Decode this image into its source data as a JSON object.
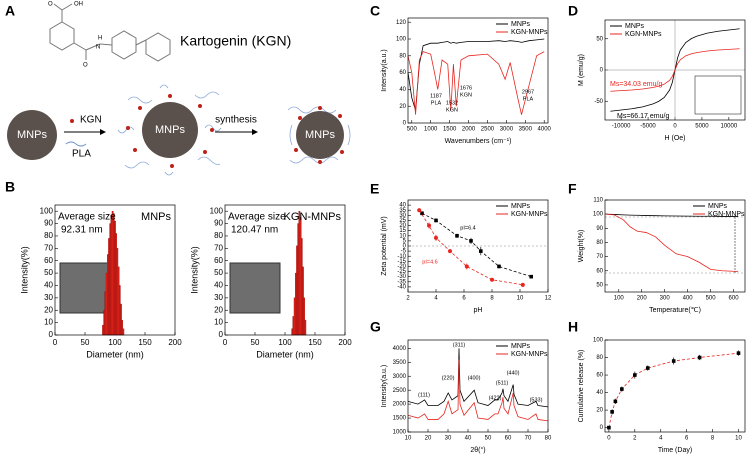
{
  "diagram": {
    "label": "A",
    "compound": "Kartogenin (KGN)",
    "atoms": [
      "OH",
      "O",
      "H",
      "N",
      "O"
    ],
    "nodes": [
      "MNPs",
      "MNPs",
      "MNPs"
    ],
    "reagents": [
      "KGN",
      "PLA"
    ],
    "step": "synthesis"
  },
  "chart_data": [
    {
      "type": "histogram",
      "label": "B",
      "title": "MNPs",
      "note": "Average size",
      "average": "92.31 nm",
      "xlabel": "Diameter (nm)",
      "ylabel": "Intensity(%)",
      "color": "#e8251f",
      "bins": [
        79,
        81,
        83,
        85,
        87,
        89,
        91,
        93,
        95,
        97,
        99,
        101,
        103,
        105,
        107,
        109,
        111,
        113,
        115
      ],
      "values": [
        8,
        20,
        35,
        50,
        65,
        78,
        90,
        97,
        100,
        98,
        92,
        82,
        70,
        55,
        40,
        25,
        12,
        5
      ],
      "xlim": [
        0,
        200
      ],
      "ylim": [
        0,
        105
      ],
      "xticks": [
        0,
        50,
        100,
        150,
        200
      ],
      "yticks": [
        0,
        10,
        20,
        30,
        40,
        50,
        60,
        70,
        80,
        90,
        100
      ]
    },
    {
      "type": "histogram",
      "title": "KGN-MNPs",
      "note": "Average size",
      "average": "120.47 nm",
      "xlabel": "Diameter (nm)",
      "ylabel": "Intensity(%)",
      "color": "#e8251f",
      "bins": [
        111,
        113,
        115,
        117,
        119,
        121,
        123,
        125,
        127,
        129,
        131,
        133,
        135
      ],
      "values": [
        5,
        15,
        30,
        50,
        72,
        90,
        100,
        95,
        78,
        55,
        30,
        12
      ],
      "xlim": [
        0,
        200
      ],
      "ylim": [
        0,
        105
      ],
      "xticks": [
        0,
        50,
        100,
        150,
        200
      ],
      "yticks": [
        0,
        10,
        20,
        30,
        40,
        50,
        60,
        70,
        80,
        90,
        100
      ]
    },
    {
      "type": "line",
      "label": "C",
      "xlabel": "Wavenumbers (cm⁻¹)",
      "ylabel": "Intensity(a.u.)",
      "legend": "upper right",
      "x": [
        400,
        500,
        600,
        700,
        800,
        1000,
        1100,
        1187,
        1300,
        1450,
        1532,
        1600,
        1676,
        1800,
        2000,
        2500,
        2800,
        2967,
        3100,
        3300,
        3400,
        3600,
        3800,
        4000
      ],
      "series": [
        {
          "name": "MNPs",
          "color": "#000000",
          "values": [
            60,
            30,
            15,
            70,
            92,
            95,
            95,
            95,
            96,
            97,
            95,
            96,
            95,
            96,
            97,
            97,
            98,
            97,
            98,
            97,
            96,
            98,
            99,
            100
          ]
        },
        {
          "name": "KGN-MNPs",
          "color": "#e8251f",
          "values": [
            80,
            60,
            10,
            75,
            85,
            82,
            60,
            40,
            75,
            70,
            15,
            70,
            20,
            75,
            80,
            82,
            70,
            52,
            72,
            30,
            10,
            45,
            80,
            85
          ]
        }
      ],
      "annotations": [
        {
          "text": "1187"
        },
        {
          "text": "PLA"
        },
        {
          "text": "1532"
        },
        {
          "text": "KGN"
        },
        {
          "text": "1676"
        },
        {
          "text": "KGN"
        },
        {
          "text": "2967"
        },
        {
          "text": "PLA"
        }
      ],
      "xlim": [
        400,
        4100
      ],
      "ylim": [
        0,
        125
      ],
      "xticks": [
        500,
        1000,
        1500,
        2000,
        2500,
        3000,
        3500,
        4000
      ],
      "yticks": [
        0,
        20,
        40,
        60,
        80,
        100,
        120
      ]
    },
    {
      "type": "line",
      "label": "D",
      "xlabel": "H (Oe)",
      "ylabel": "M (emu/g)",
      "legend": "upper left",
      "x": [
        -12000,
        -10000,
        -8000,
        -6000,
        -4000,
        -3000,
        -2000,
        -1000,
        -500,
        0,
        500,
        1000,
        2000,
        3000,
        4000,
        6000,
        8000,
        10000,
        12000
      ],
      "series": [
        {
          "name": "MNPs",
          "color": "#000000",
          "values": [
            -66,
            -64,
            -62,
            -59,
            -54,
            -50,
            -44,
            -32,
            -20,
            0,
            20,
            32,
            44,
            50,
            54,
            59,
            62,
            64,
            66
          ]
        },
        {
          "name": "KGN-MNPs",
          "color": "#e8251f",
          "values": [
            -34,
            -33,
            -32,
            -30.4,
            -27.8,
            -25.8,
            -22.7,
            -16.5,
            -10.3,
            0,
            10.3,
            16.5,
            22.7,
            25.8,
            27.8,
            30.4,
            32,
            33,
            34
          ]
        }
      ],
      "annotations": [
        {
          "text": "Ms=34.03 emu/g",
          "color": "#e8251f"
        },
        {
          "text": "Ms=66.17 emu/g",
          "color": "#000000"
        }
      ],
      "xlim": [
        -13000,
        13000
      ],
      "ylim": [
        -80,
        80
      ],
      "xticks": [
        -10000,
        -5000,
        0,
        5000,
        10000
      ],
      "yticks": [
        -50,
        0,
        50
      ]
    },
    {
      "type": "scatter",
      "label": "E",
      "xlabel": "pH",
      "ylabel": "Zeta potential (mV)",
      "legend": "upper right",
      "fit_line": "dashed",
      "series": [
        {
          "name": "MNPs",
          "color": "#000000",
          "marker": "square",
          "x": [
            3,
            4,
            5.5,
            6.5,
            7.2,
            8.5,
            10.8
          ],
          "values": [
            32,
            25,
            10,
            5,
            -5,
            -20,
            -30
          ],
          "errors": [
            2,
            2,
            2,
            3,
            4,
            2,
            1
          ]
        },
        {
          "name": "KGN-MNPs",
          "color": "#e8251f",
          "marker": "circle",
          "x": [
            2.8,
            3.5,
            4,
            5,
            6.2,
            8,
            10.2
          ],
          "values": [
            35,
            20,
            8,
            -5,
            -20,
            -33,
            -38
          ],
          "errors": [
            2,
            3,
            3,
            2,
            3,
            1,
            2
          ]
        }
      ],
      "annotations": [
        {
          "text": "pI=6.4",
          "color": "#000000"
        },
        {
          "text": "pI=4.6",
          "color": "#e8251f"
        }
      ],
      "xlim": [
        2,
        12
      ],
      "ylim": [
        -45,
        45
      ],
      "xticks": [
        2,
        4,
        6,
        8,
        10,
        12
      ],
      "yticks": [
        -40,
        -35,
        -30,
        -25,
        -20,
        -15,
        -10,
        -5,
        0,
        5,
        10,
        15,
        20,
        25,
        30,
        35,
        40
      ]
    },
    {
      "type": "line",
      "label": "F",
      "xlabel": "Temperature(℃)",
      "ylabel": "Weight(%)",
      "legend": "upper right",
      "x": [
        40,
        80,
        120,
        150,
        180,
        220,
        260,
        300,
        350,
        400,
        450,
        500,
        550,
        620
      ],
      "series": [
        {
          "name": "MNPs",
          "color": "#000000",
          "values": [
            100,
            99.8,
            99.5,
            99.3,
            99.2,
            99,
            98.9,
            98.8,
            98.7,
            98.6,
            98.5,
            98.5,
            98.4,
            98.4
          ]
        },
        {
          "name": "KGN-MNPs",
          "color": "#e8251f",
          "values": [
            100,
            99.5,
            96,
            91,
            88,
            87,
            84,
            78,
            72,
            70,
            66,
            61,
            60,
            59.5
          ]
        }
      ],
      "xlim": [
        40,
        650
      ],
      "ylim": [
        45,
        110
      ],
      "xticks": [
        100,
        200,
        300,
        400,
        500,
        600
      ],
      "yticks": [
        50,
        60,
        70,
        80,
        90,
        100,
        110
      ]
    },
    {
      "type": "line",
      "label": "G",
      "xlabel": "2θ(°)",
      "ylabel": "Intensity(a.u.)",
      "legend": "upper right",
      "x": [
        10,
        15,
        18.3,
        20,
        25,
        28,
        30.1,
        32,
        35,
        35.5,
        36,
        38,
        43.1,
        45,
        50,
        53.4,
        55,
        57,
        57.5,
        58,
        60,
        62.6,
        63,
        65,
        70,
        74,
        75,
        80
      ],
      "series": [
        {
          "name": "MNPs",
          "color": "#000000",
          "values": [
            2100,
            2000,
            2150,
            1950,
            1950,
            2100,
            2400,
            2150,
            2300,
            4000,
            2500,
            2100,
            2500,
            2050,
            1950,
            2150,
            2150,
            2400,
            2550,
            2300,
            2100,
            2700,
            2350,
            2000,
            1950,
            2100,
            1950,
            1900
          ]
        },
        {
          "name": "KGN-MNPs",
          "color": "#e8251f",
          "values": [
            1600,
            1500,
            1650,
            1450,
            1450,
            1650,
            2100,
            1650,
            1800,
            3600,
            2000,
            1600,
            2050,
            1500,
            1450,
            1650,
            1650,
            2050,
            2250,
            1850,
            1650,
            2400,
            1950,
            1550,
            1450,
            1650,
            1450,
            1400
          ]
        }
      ],
      "annotations": [
        {
          "text": "(111)"
        },
        {
          "text": "(220)"
        },
        {
          "text": "(311)"
        },
        {
          "text": "(400)"
        },
        {
          "text": "(422)"
        },
        {
          "text": "(511)"
        },
        {
          "text": "(440)"
        },
        {
          "text": "(533)"
        }
      ],
      "xlim": [
        10,
        80
      ],
      "ylim": [
        1000,
        4300
      ],
      "xticks": [
        10,
        20,
        30,
        40,
        50,
        60,
        70,
        80
      ],
      "yticks": [
        1000,
        1500,
        2000,
        2500,
        3000,
        3500,
        4000
      ]
    },
    {
      "type": "scatter",
      "label": "H",
      "xlabel": "Time (Day)",
      "ylabel": "Cumulative release (%)",
      "fit_line": "dashed",
      "fit_color": "#e8251f",
      "series": [
        {
          "color": "#000000",
          "marker": "square",
          "x": [
            0,
            0.25,
            0.5,
            1,
            2,
            3,
            5,
            7,
            10
          ],
          "values": [
            0,
            18,
            30,
            44,
            60,
            68,
            76,
            80,
            85
          ],
          "errors": [
            1,
            3,
            3,
            3,
            4,
            3,
            4,
            3,
            3
          ]
        }
      ],
      "xlim": [
        -0.3,
        10.5
      ],
      "ylim": [
        -5,
        100
      ],
      "xticks": [
        0,
        2,
        4,
        6,
        8,
        10
      ],
      "yticks": [
        0,
        20,
        40,
        60,
        80,
        100
      ]
    }
  ]
}
